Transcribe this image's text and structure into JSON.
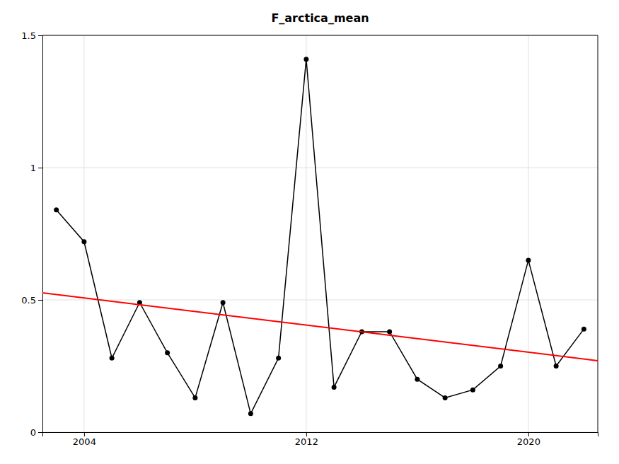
{
  "chart_data": {
    "type": "line",
    "title": "F_arctica_mean",
    "x": [
      2003,
      2004,
      2005,
      2006,
      2007,
      2008,
      2009,
      2010,
      2011,
      2012,
      2013,
      2014,
      2015,
      2016,
      2017,
      2018,
      2019,
      2020,
      2021,
      2022
    ],
    "series": [
      {
        "values": [
          0.84,
          0.72,
          0.28,
          0.49,
          0.3,
          0.13,
          0.49,
          0.07,
          0.28,
          1.41,
          0.17,
          0.38,
          0.38,
          0.2,
          0.13,
          0.16,
          0.25,
          0.65,
          0.25,
          0.39
        ],
        "color": "#000000",
        "marker": "circle",
        "line_style": "solid"
      },
      {
        "x": [
          2002.5,
          2022.5
        ],
        "values": [
          0.526846,
          0.270154
        ],
        "color": "#ff0000",
        "line_style": "solid"
      }
    ],
    "xlim": [
      2002.5,
      2022.5
    ],
    "xticks": [
      2004,
      2012,
      2020
    ],
    "ylim": [
      0,
      1.5
    ],
    "yticks": [
      0,
      0.5,
      1,
      1.5
    ],
    "grid": true
  }
}
